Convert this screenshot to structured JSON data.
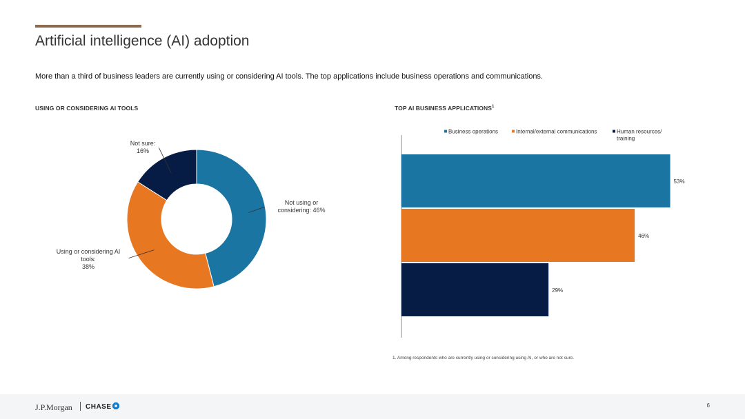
{
  "header": {
    "title": "Artificial intelligence (AI) adoption",
    "subtitle": "More than a third of business leaders are currently using or considering AI tools. The top applications include business operations and communications."
  },
  "chart_data": [
    {
      "type": "pie",
      "title": "USING OR CONSIDERING AI TOOLS",
      "categories": [
        "Not using or considering",
        "Using or considering AI tools",
        "Not sure"
      ],
      "values": [
        46,
        38,
        16
      ],
      "labels": [
        [
          "Not using or",
          "considering: 46%"
        ],
        [
          "Using or considering AI",
          "tools:",
          "38%"
        ],
        [
          "Not sure:",
          "16%"
        ]
      ],
      "colors": [
        "#1a75a3",
        "#e87722",
        "#061c44"
      ]
    },
    {
      "type": "bar",
      "orientation": "horizontal",
      "title": "TOP AI BUSINESS APPLICATIONS",
      "title_superscript": "1",
      "categories": [
        "Business operations",
        "Internal/external communications",
        "Human resources/training"
      ],
      "values": [
        53,
        46,
        29
      ],
      "value_labels": [
        "53%",
        "46%",
        "29%"
      ],
      "colors": [
        "#1a75a3",
        "#e87722",
        "#061c44"
      ],
      "xlim": [
        0,
        60
      ],
      "legend": {
        "placement": "top",
        "items": [
          [
            "Business operations"
          ],
          [
            "Internal/external communications"
          ],
          [
            "Human resources/",
            "training"
          ]
        ]
      }
    }
  ],
  "footnote": "1. Among respondents who are currently using or considering using AI, or who are not sure.",
  "footer": {
    "logo_jpm": "J.P.Morgan",
    "logo_chase": "CHASE",
    "page_number": "6"
  }
}
